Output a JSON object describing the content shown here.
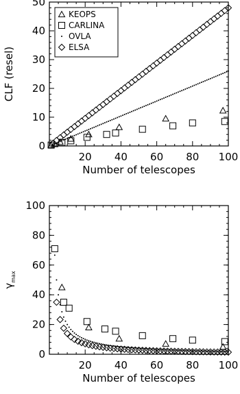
{
  "chart_data": [
    {
      "type": "scatter",
      "xlabel": "Number of telescopes",
      "ylabel": "CLF (resel)",
      "xlim": [
        0,
        100
      ],
      "ylim": [
        0,
        50
      ],
      "xticks": [
        "20",
        "40",
        "60",
        "80",
        "100"
      ],
      "yticks": [
        "0",
        "10",
        "20",
        "30",
        "40",
        "50"
      ],
      "legend": {
        "placement": "top-left",
        "entries": [
          {
            "label": "KEOPS",
            "marker": "triangle"
          },
          {
            "label": "CARLINA",
            "marker": "square"
          },
          {
            "label": "OVLA",
            "marker": "dot"
          },
          {
            "label": "ELSA",
            "marker": "diamond"
          }
        ]
      },
      "series": [
        {
          "name": "KEOPS",
          "marker": "triangle",
          "x": [
            1,
            3,
            6,
            12,
            22,
            39,
            65,
            97
          ],
          "y": [
            0.3,
            0.6,
            1.4,
            2.5,
            4,
            6.5,
            9.5,
            12.3
          ]
        },
        {
          "name": "CARLINA",
          "marker": "square",
          "x": [
            1,
            7,
            12,
            21,
            32,
            37,
            52,
            69,
            80,
            98
          ],
          "y": [
            0.3,
            1.2,
            1.8,
            3,
            4,
            4.5,
            5.8,
            7,
            8,
            8.5
          ]
        },
        {
          "name": "OVLA",
          "marker": "dot",
          "x_range": [
            2,
            100
          ],
          "slope": 0.26
        },
        {
          "name": "ELSA",
          "marker": "diamond",
          "x_range": [
            2,
            100
          ],
          "slope": 0.48
        }
      ]
    },
    {
      "type": "scatter",
      "xlabel": "Number of telescopes",
      "ylabel": "γmax",
      "ylabel_main": "γ",
      "ylabel_sub": "max",
      "xlim": [
        0,
        100
      ],
      "ylim": [
        0,
        100
      ],
      "xticks": [
        "20",
        "40",
        "60",
        "80",
        "100"
      ],
      "yticks": [
        "0",
        "20",
        "40",
        "60",
        "80",
        "100"
      ],
      "series": [
        {
          "name": "KEOPS",
          "marker": "triangle",
          "x": [
            7,
            22,
            39,
            65,
            97
          ],
          "y": [
            45,
            18,
            10.5,
            7,
            5
          ]
        },
        {
          "name": "CARLINA",
          "marker": "square",
          "x": [
            3,
            8,
            11,
            21,
            31,
            37,
            52,
            69,
            80,
            98
          ],
          "y": [
            71,
            35,
            31,
            22,
            17,
            15.5,
            12.5,
            10.5,
            9.5,
            8.5
          ]
        },
        {
          "name": "OVLA",
          "marker": "dot",
          "x_range": [
            3,
            100
          ],
          "coef": 200
        },
        {
          "name": "ELSA",
          "marker": "diamond",
          "x_range": [
            4,
            100
          ],
          "coef": 140
        }
      ]
    }
  ]
}
